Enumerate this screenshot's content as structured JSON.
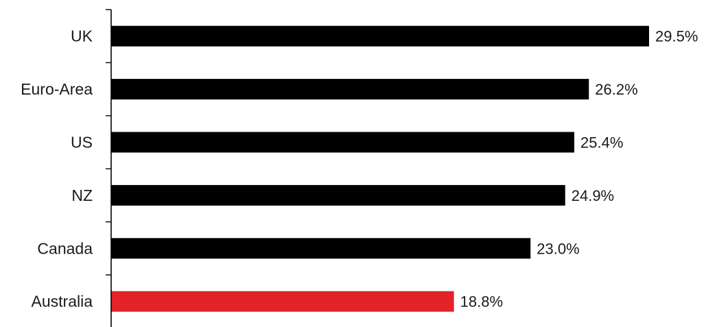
{
  "chart_data": {
    "type": "bar",
    "orientation": "horizontal",
    "categories": [
      "UK",
      "Euro-Area",
      "US",
      "NZ",
      "Canada",
      "Australia"
    ],
    "values": [
      29.5,
      26.2,
      25.4,
      24.9,
      23.0,
      18.8
    ],
    "value_labels": [
      "29.5%",
      "26.2%",
      "25.4%",
      "24.9%",
      "23.0%",
      "18.8%"
    ],
    "bar_colors": [
      "#000000",
      "#000000",
      "#000000",
      "#000000",
      "#000000",
      "#e3232a"
    ],
    "highlight_category": "Australia",
    "xlim": [
      0,
      29.5
    ],
    "grid": false,
    "legend": "none",
    "title": "",
    "xlabel": "",
    "ylabel": ""
  }
}
